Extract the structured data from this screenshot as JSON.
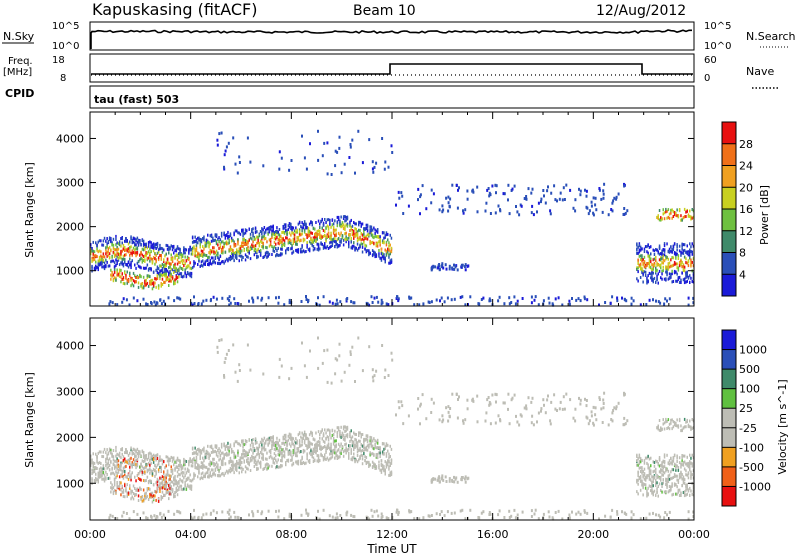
{
  "header": {
    "station": "Kapuskasing (fitACF)",
    "beam": "Beam 10",
    "date": "12/Aug/2012"
  },
  "strip_nsky": {
    "left_label": "N.Sky",
    "left_ticks": [
      "10^5",
      "10^0"
    ],
    "right_label": "N.Search",
    "right_ticks": [
      "10^5",
      "10^0"
    ]
  },
  "strip_freq": {
    "left_label_1": "Freq.",
    "left_label_2": "[MHz]",
    "left_ticks": [
      "18",
      "8"
    ],
    "right_label": "Nave",
    "right_ticks": [
      "60",
      "0"
    ]
  },
  "cpid": {
    "label": "CPID",
    "mode": "tau (fast) 503"
  },
  "colors": {
    "power": [
      "#1b1bd8",
      "#2a4fb8",
      "#3f8a6a",
      "#6ec040",
      "#c8d020",
      "#f0a020",
      "#f07018",
      "#e81010"
    ],
    "velocity": [
      "#e81010",
      "#f06018",
      "#f0a020",
      "#bdbdb5",
      "#bdbdb5",
      "#60c040",
      "#3f8a6a",
      "#2a4fb8",
      "#1b1bd8"
    ]
  },
  "chart_data": [
    {
      "type": "heatmap",
      "name": "power",
      "ylabel": "Slant Range [km]",
      "xlabel": "",
      "yticks": [
        "1000",
        "2000",
        "3000",
        "4000"
      ],
      "ylim": [
        200,
        4600
      ],
      "xlim": [
        0,
        24
      ],
      "colorbar_label": "Power [dB]",
      "colorbar_ticks": [
        "4",
        "8",
        "12",
        "16",
        "20",
        "24",
        "28"
      ],
      "colorbar_range": [
        0,
        32
      ]
    },
    {
      "type": "heatmap",
      "name": "velocity",
      "ylabel": "Slant Range [km]",
      "xlabel": "Time UT",
      "xticks": [
        "00:00",
        "04:00",
        "08:00",
        "12:00",
        "16:00",
        "20:00",
        "00:00"
      ],
      "yticks": [
        "1000",
        "2000",
        "3000",
        "4000"
      ],
      "ylim": [
        200,
        4600
      ],
      "xlim": [
        0,
        24
      ],
      "colorbar_label": "Velocity [m s^-1]",
      "colorbar_ticks": [
        "1000",
        "500",
        "100",
        "25",
        "-25",
        "-100",
        "-500",
        "-1000"
      ]
    }
  ]
}
